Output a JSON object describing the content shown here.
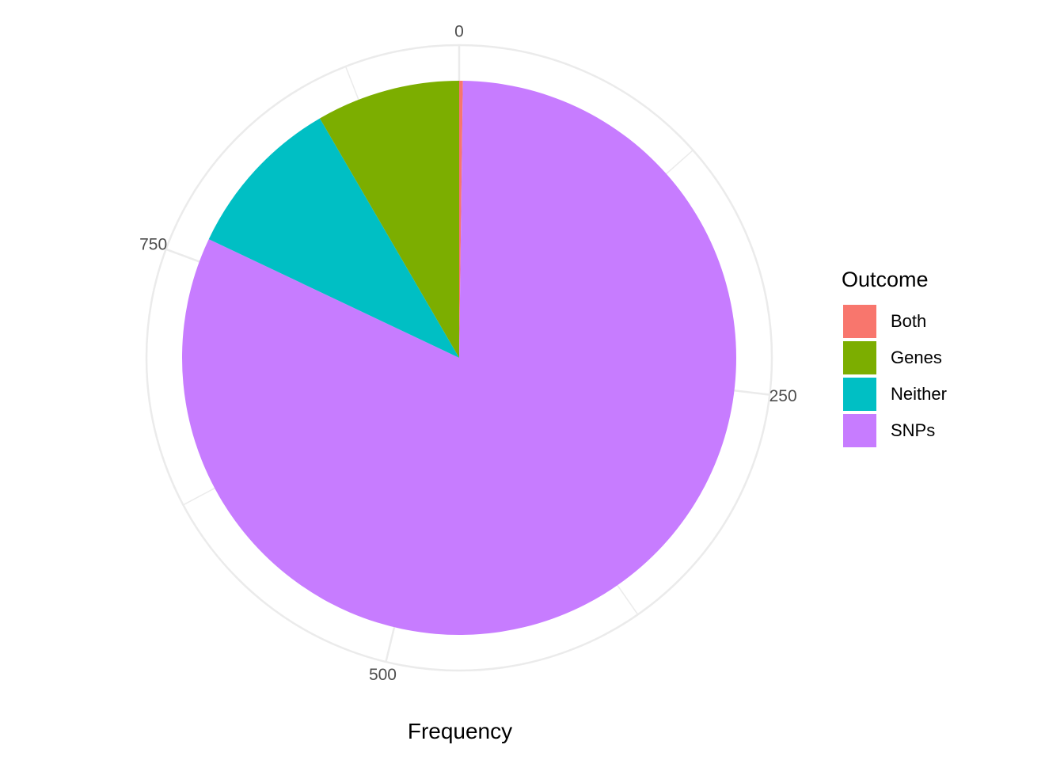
{
  "chart_data": {
    "type": "pie",
    "slices": [
      {
        "label": "Both",
        "value": 2,
        "color": "#F8766D"
      },
      {
        "label": "SNPs",
        "value": 761,
        "color": "#C77CFF"
      },
      {
        "label": "Neither",
        "value": 89,
        "color": "#00BFC4"
      },
      {
        "label": "Genes",
        "value": 78,
        "color": "#7CAE00"
      }
    ],
    "legend": {
      "title": "Outcome",
      "items": [
        {
          "label": "Both",
          "color": "#F8766D"
        },
        {
          "label": "Genes",
          "color": "#7CAE00"
        },
        {
          "label": "Neither",
          "color": "#00BFC4"
        },
        {
          "label": "SNPs",
          "color": "#C77CFF"
        }
      ],
      "position": "right"
    },
    "axis_ticks": [
      "0",
      "250",
      "500",
      "750"
    ],
    "axis_tick_values": [
      0,
      250,
      500,
      750
    ],
    "total": 930,
    "xlabel": "Frequency",
    "grid_color": "#EBEBEB",
    "tick_label_color": "#4D4D4D"
  }
}
